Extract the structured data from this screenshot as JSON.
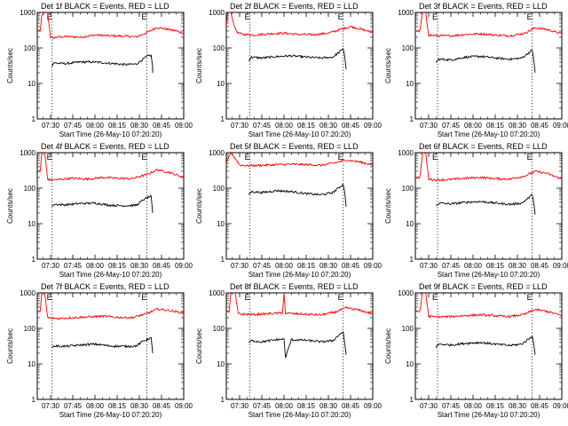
{
  "chart_data": [
    {
      "type": "line",
      "title": "Det 1f BLACK = Events, RED = LLD",
      "xlabel": "Start Time (26-May-10 07:20:20)",
      "ylabel": "Counts/sec",
      "x_ticks": [
        "07:30",
        "07:45",
        "08:00",
        "08:15",
        "08:30",
        "08:45",
        "09:00"
      ],
      "y_ticks": [
        "1",
        "10",
        "100",
        "1000"
      ],
      "ylim": [
        1,
        1000
      ],
      "yscale": "log",
      "xlim": [
        "07:21",
        "09:00"
      ],
      "markers": [
        "07:31",
        "08:35"
      ],
      "marker_labels": [
        "E",
        "E"
      ],
      "series": [
        {
          "name": "LLD",
          "color": "#ff0000",
          "x": [
            "07:21",
            "07:23",
            "07:24",
            "07:26",
            "07:28",
            "07:30",
            "07:32",
            "07:34",
            "07:40",
            "07:50",
            "08:00",
            "08:10",
            "08:20",
            "08:28",
            "08:35",
            "08:42",
            "08:48",
            "08:55",
            "09:00"
          ],
          "y": [
            300,
            300,
            800,
            1000,
            1000,
            200,
            190,
            200,
            210,
            200,
            230,
            220,
            215,
            205,
            270,
            380,
            340,
            300,
            260
          ]
        },
        {
          "name": "Events",
          "color": "#000000",
          "x": [
            "07:31",
            "07:32",
            "07:40",
            "07:50",
            "08:00",
            "08:10",
            "08:20",
            "08:28",
            "08:33",
            "08:36",
            "08:38",
            "08:39",
            "08:39"
          ],
          "y": [
            30,
            38,
            36,
            40,
            40,
            37,
            34,
            35,
            50,
            60,
            62,
            28,
            20
          ]
        }
      ]
    },
    {
      "type": "line",
      "title": "Det 2f BLACK = Events, RED = LLD",
      "xlabel": "Start Time (26-May-10 07:20:20)",
      "ylabel": "Counts/sec",
      "x_ticks": [
        "07:30",
        "07:45",
        "08:00",
        "08:15",
        "08:30",
        "08:45",
        "09:00"
      ],
      "y_ticks": [
        "1",
        "10",
        "100",
        "1000"
      ],
      "ylim": [
        1,
        1000
      ],
      "yscale": "log",
      "xlim": [
        "07:21",
        "09:00"
      ],
      "markers": [
        "07:37",
        "08:40"
      ],
      "marker_labels": [
        "E",
        "E"
      ],
      "series": [
        {
          "name": "LLD",
          "color": "#ff0000",
          "x": [
            "07:21",
            "07:22",
            "07:24",
            "07:27",
            "07:29",
            "07:33",
            "07:40",
            "07:50",
            "08:00",
            "08:10",
            "08:20",
            "08:30",
            "08:38",
            "08:45",
            "08:52",
            "09:00"
          ],
          "y": [
            400,
            1000,
            1000,
            350,
            260,
            240,
            230,
            250,
            260,
            240,
            235,
            260,
            330,
            400,
            340,
            270
          ]
        },
        {
          "name": "Events",
          "color": "#000000",
          "x": [
            "07:36",
            "07:38",
            "07:45",
            "07:55",
            "08:05",
            "08:15",
            "08:25",
            "08:33",
            "08:38",
            "08:40",
            "08:41",
            "08:42"
          ],
          "y": [
            45,
            55,
            52,
            57,
            60,
            55,
            52,
            55,
            80,
            95,
            60,
            25
          ]
        }
      ]
    },
    {
      "type": "line",
      "title": "Det 3f BLACK = Events, RED = LLD",
      "xlabel": "Start Time (26-May-10 07:20:20)",
      "ylabel": "Counts/sec",
      "x_ticks": [
        "07:30",
        "07:45",
        "08:00",
        "08:15",
        "08:30",
        "08:45",
        "09:00"
      ],
      "y_ticks": [
        "1",
        "10",
        "100",
        "1000"
      ],
      "ylim": [
        1,
        1000
      ],
      "yscale": "log",
      "xlim": [
        "07:21",
        "09:00"
      ],
      "markers": [
        "07:36",
        "08:40"
      ],
      "marker_labels": [
        "E",
        "E"
      ],
      "series": [
        {
          "name": "LLD",
          "color": "#ff0000",
          "x": [
            "07:21",
            "07:24",
            "07:26",
            "07:28",
            "07:30",
            "07:35",
            "07:45",
            "07:55",
            "08:05",
            "08:15",
            "08:25",
            "08:35",
            "08:42",
            "08:50",
            "09:00"
          ],
          "y": [
            300,
            300,
            1000,
            1000,
            230,
            220,
            220,
            240,
            250,
            230,
            220,
            260,
            370,
            330,
            250
          ]
        },
        {
          "name": "Events",
          "color": "#000000",
          "x": [
            "07:35",
            "07:37",
            "07:45",
            "07:55",
            "08:05",
            "08:15",
            "08:25",
            "08:33",
            "08:38",
            "08:40",
            "08:41",
            "08:42"
          ],
          "y": [
            40,
            48,
            46,
            55,
            58,
            52,
            48,
            52,
            75,
            85,
            50,
            20
          ]
        }
      ]
    },
    {
      "type": "line",
      "title": "Det 4f BLACK = Events, RED = LLD",
      "xlabel": "Start Time (26-May-10 07:20:20)",
      "ylabel": "Counts/sec",
      "x_ticks": [
        "07:30",
        "07:45",
        "08:00",
        "08:15",
        "08:30",
        "08:45",
        "09:00"
      ],
      "y_ticks": [
        "1",
        "10",
        "100",
        "1000"
      ],
      "ylim": [
        1,
        1000
      ],
      "yscale": "log",
      "xlim": [
        "07:21",
        "09:00"
      ],
      "markers": [
        "07:31",
        "08:35"
      ],
      "marker_labels": [
        "E",
        "E"
      ],
      "series": [
        {
          "name": "LLD",
          "color": "#ff0000",
          "x": [
            "07:21",
            "07:23",
            "07:24",
            "07:26",
            "07:28",
            "07:30",
            "07:35",
            "07:45",
            "07:55",
            "08:05",
            "08:15",
            "08:25",
            "08:35",
            "08:42",
            "08:50",
            "09:00"
          ],
          "y": [
            300,
            300,
            1000,
            1000,
            180,
            170,
            175,
            190,
            180,
            200,
            190,
            185,
            240,
            330,
            280,
            200
          ]
        },
        {
          "name": "Events",
          "color": "#000000",
          "x": [
            "07:31",
            "07:32",
            "07:40",
            "07:50",
            "08:00",
            "08:10",
            "08:20",
            "08:28",
            "08:33",
            "08:36",
            "08:38",
            "08:39"
          ],
          "y": [
            30,
            35,
            34,
            37,
            38,
            33,
            32,
            33,
            48,
            55,
            60,
            20
          ]
        }
      ]
    },
    {
      "type": "line",
      "title": "Det 5f BLACK = Events, RED = LLD",
      "xlabel": "Start Time (26-May-10 07:20:20)",
      "ylabel": "Counts/sec",
      "x_ticks": [
        "07:30",
        "07:45",
        "08:00",
        "08:15",
        "08:30",
        "08:45",
        "09:00"
      ],
      "y_ticks": [
        "1",
        "10",
        "100",
        "1000"
      ],
      "ylim": [
        1,
        1000
      ],
      "yscale": "log",
      "xlim": [
        "07:21",
        "09:00"
      ],
      "markers": [
        "07:37",
        "08:40"
      ],
      "marker_labels": [
        "E",
        "E"
      ],
      "series": [
        {
          "name": "LLD",
          "color": "#ff0000",
          "x": [
            "07:21",
            "07:24",
            "07:27",
            "07:30",
            "07:35",
            "07:45",
            "07:55",
            "08:05",
            "08:15",
            "08:25",
            "08:35",
            "08:42",
            "08:50",
            "09:00"
          ],
          "y": [
            500,
            1000,
            700,
            450,
            430,
            440,
            460,
            470,
            460,
            440,
            520,
            620,
            560,
            450
          ]
        },
        {
          "name": "Events",
          "color": "#000000",
          "x": [
            "07:36",
            "07:38",
            "07:45",
            "07:55",
            "08:05",
            "08:15",
            "08:25",
            "08:33",
            "08:38",
            "08:40",
            "08:41",
            "08:42"
          ],
          "y": [
            65,
            80,
            75,
            85,
            80,
            70,
            65,
            75,
            110,
            125,
            80,
            30
          ]
        }
      ]
    },
    {
      "type": "line",
      "title": "Det 6f BLACK = Events, RED = LLD",
      "xlabel": "Start Time (26-May-10 07:20:20)",
      "ylabel": "Counts/sec",
      "x_ticks": [
        "07:30",
        "07:45",
        "08:00",
        "08:15",
        "08:30",
        "08:45",
        "09:00"
      ],
      "y_ticks": [
        "1",
        "10",
        "100",
        "1000"
      ],
      "ylim": [
        1,
        1000
      ],
      "yscale": "log",
      "xlim": [
        "07:21",
        "09:00"
      ],
      "markers": [
        "07:36",
        "08:40"
      ],
      "marker_labels": [
        "E",
        "E"
      ],
      "series": [
        {
          "name": "LLD",
          "color": "#ff0000",
          "x": [
            "07:21",
            "07:24",
            "07:26",
            "07:28",
            "07:30",
            "07:35",
            "07:45",
            "07:55",
            "08:05",
            "08:15",
            "08:25",
            "08:35",
            "08:42",
            "08:50",
            "09:00"
          ],
          "y": [
            200,
            200,
            1000,
            1000,
            180,
            170,
            175,
            190,
            200,
            185,
            180,
            220,
            300,
            260,
            180
          ]
        },
        {
          "name": "Events",
          "color": "#000000",
          "x": [
            "07:35",
            "07:37",
            "07:45",
            "07:55",
            "08:05",
            "08:15",
            "08:25",
            "08:33",
            "08:38",
            "08:40",
            "08:41",
            "08:42"
          ],
          "y": [
            32,
            38,
            36,
            40,
            42,
            38,
            35,
            38,
            55,
            65,
            40,
            18
          ]
        }
      ]
    },
    {
      "type": "line",
      "title": "Det 7f BLACK = Events, RED = LLD",
      "xlabel": "Start Time (26-May-10 07:20:20)",
      "ylabel": "Counts/sec",
      "x_ticks": [
        "07:30",
        "07:45",
        "08:00",
        "08:15",
        "08:30",
        "08:45",
        "09:00"
      ],
      "y_ticks": [
        "1",
        "10",
        "100",
        "1000"
      ],
      "ylim": [
        1,
        1000
      ],
      "yscale": "log",
      "xlim": [
        "07:21",
        "09:00"
      ],
      "markers": [
        "07:31",
        "08:35"
      ],
      "marker_labels": [
        "E",
        "E"
      ],
      "series": [
        {
          "name": "LLD",
          "color": "#ff0000",
          "x": [
            "07:21",
            "07:23",
            "07:24",
            "07:26",
            "07:28",
            "07:30",
            "07:35",
            "07:45",
            "07:55",
            "08:05",
            "08:15",
            "08:25",
            "08:35",
            "08:42",
            "08:50",
            "09:00"
          ],
          "y": [
            300,
            300,
            1000,
            1000,
            200,
            195,
            190,
            200,
            210,
            220,
            205,
            200,
            260,
            350,
            320,
            270
          ]
        },
        {
          "name": "Events",
          "color": "#000000",
          "x": [
            "07:31",
            "07:32",
            "07:40",
            "07:50",
            "08:00",
            "08:10",
            "08:20",
            "08:28",
            "08:33",
            "08:36",
            "08:38",
            "08:39"
          ],
          "y": [
            28,
            32,
            31,
            34,
            36,
            32,
            31,
            32,
            45,
            50,
            55,
            20
          ]
        }
      ]
    },
    {
      "type": "line",
      "title": "Det 8f BLACK = Events, RED = LLD",
      "xlabel": "Start Time (26-May-10 07:20:20)",
      "ylabel": "Counts/sec",
      "x_ticks": [
        "07:30",
        "07:45",
        "08:00",
        "08:15",
        "08:30",
        "08:45",
        "09:00"
      ],
      "y_ticks": [
        "1",
        "10",
        "100",
        "1000"
      ],
      "ylim": [
        1,
        1000
      ],
      "yscale": "log",
      "xlim": [
        "07:21",
        "09:00"
      ],
      "markers": [
        "07:37",
        "08:40"
      ],
      "marker_labels": [
        "E",
        "E"
      ],
      "series": [
        {
          "name": "LLD",
          "color": "#ff0000",
          "x": [
            "07:21",
            "07:23",
            "07:24",
            "07:27",
            "07:29",
            "07:33",
            "07:40",
            "07:50",
            "07:59",
            "08:00",
            "08:01",
            "08:05",
            "08:15",
            "08:25",
            "08:35",
            "08:42",
            "08:50",
            "09:00"
          ],
          "y": [
            300,
            300,
            1000,
            1000,
            260,
            250,
            245,
            260,
            270,
            1000,
            270,
            260,
            250,
            240,
            290,
            380,
            330,
            260
          ]
        },
        {
          "name": "Events",
          "color": "#000000",
          "x": [
            "07:36",
            "07:38",
            "07:45",
            "07:55",
            "08:00",
            "08:01",
            "08:05",
            "08:15",
            "08:25",
            "08:33",
            "08:38",
            "08:40",
            "08:41",
            "08:42"
          ],
          "y": [
            38,
            45,
            42,
            48,
            50,
            15,
            48,
            46,
            42,
            45,
            70,
            80,
            40,
            18
          ]
        }
      ]
    },
    {
      "type": "line",
      "title": "Det 9f BLACK = Events, RED = LLD",
      "xlabel": "Start Time (26-May-10 07:20:20)",
      "ylabel": "Counts/sec",
      "x_ticks": [
        "07:30",
        "07:45",
        "08:00",
        "08:15",
        "08:30",
        "08:45",
        "09:00"
      ],
      "y_ticks": [
        "1",
        "10",
        "100",
        "1000"
      ],
      "ylim": [
        1,
        1000
      ],
      "yscale": "log",
      "xlim": [
        "07:21",
        "09:00"
      ],
      "markers": [
        "07:36",
        "08:40"
      ],
      "marker_labels": [
        "E",
        "E"
      ],
      "series": [
        {
          "name": "LLD",
          "color": "#ff0000",
          "x": [
            "07:21",
            "07:24",
            "07:26",
            "07:28",
            "07:30",
            "07:35",
            "07:45",
            "07:55",
            "08:05",
            "08:15",
            "08:25",
            "08:35",
            "08:42",
            "08:50",
            "09:00"
          ],
          "y": [
            300,
            300,
            1000,
            1000,
            220,
            210,
            215,
            230,
            240,
            225,
            215,
            250,
            340,
            300,
            230
          ]
        },
        {
          "name": "Events",
          "color": "#000000",
          "x": [
            "07:35",
            "07:37",
            "07:45",
            "07:55",
            "08:05",
            "08:15",
            "08:25",
            "08:33",
            "08:38",
            "08:40",
            "08:41",
            "08:42"
          ],
          "y": [
            30,
            36,
            34,
            38,
            40,
            36,
            33,
            36,
            52,
            60,
            38,
            18
          ]
        }
      ]
    }
  ]
}
